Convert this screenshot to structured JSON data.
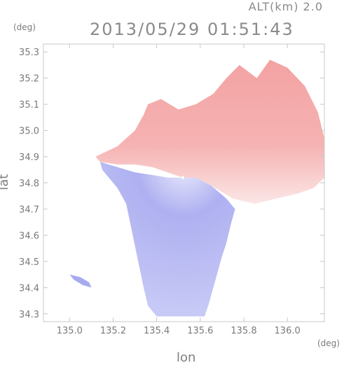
{
  "header": {
    "altitude_label": "ALT(km) 2.0",
    "timestamp": "2013/05/29 01:51:43"
  },
  "colors": {
    "frame": "#c8c8c8",
    "away_red": "#f4a0a0",
    "toward_blue": "#a8aaf0",
    "text": "#7a7a7a"
  },
  "chart_data": {
    "type": "heatmap",
    "title": "2013/05/29 01:51:43",
    "subtitle": "ALT(km) 2.0",
    "xlabel": "lon",
    "ylabel": "lat",
    "x_unit": "(deg)",
    "y_unit": "(deg)",
    "xlim": [
      134.88,
      136.17
    ],
    "ylim": [
      34.27,
      35.33
    ],
    "x_ticks": [
      "135.0",
      "135.2",
      "135.4",
      "135.6",
      "135.8",
      "136.0"
    ],
    "x_tick_values": [
      135.0,
      135.2,
      135.4,
      135.6,
      135.8,
      136.0
    ],
    "y_ticks": [
      "34.3",
      "34.4",
      "34.5",
      "34.6",
      "34.7",
      "34.8",
      "34.9",
      "35.0",
      "35.1",
      "35.2",
      "35.3"
    ],
    "y_tick_values": [
      34.3,
      34.4,
      34.5,
      34.6,
      34.7,
      34.8,
      34.9,
      35.0,
      35.1,
      35.2,
      35.3
    ],
    "radar_center": [
      135.52,
      34.82
    ],
    "regions": [
      {
        "name": "red",
        "color": "#f4a0a0",
        "polygon": [
          [
            135.12,
            34.9
          ],
          [
            135.22,
            34.94
          ],
          [
            135.3,
            35.0
          ],
          [
            135.34,
            35.06
          ],
          [
            135.36,
            35.1
          ],
          [
            135.42,
            35.12
          ],
          [
            135.5,
            35.08
          ],
          [
            135.58,
            35.1
          ],
          [
            135.66,
            35.14
          ],
          [
            135.72,
            35.2
          ],
          [
            135.78,
            35.25
          ],
          [
            135.86,
            35.2
          ],
          [
            135.92,
            35.27
          ],
          [
            136.0,
            35.24
          ],
          [
            136.08,
            35.17
          ],
          [
            136.14,
            35.07
          ],
          [
            136.17,
            34.97
          ],
          [
            136.17,
            34.82
          ],
          [
            136.12,
            34.78
          ],
          [
            136.05,
            34.76
          ],
          [
            135.95,
            34.74
          ],
          [
            135.85,
            34.72
          ],
          [
            135.75,
            34.74
          ],
          [
            135.65,
            34.79
          ],
          [
            135.58,
            34.82
          ],
          [
            135.52,
            34.82
          ],
          [
            135.45,
            34.84
          ],
          [
            135.38,
            34.86
          ],
          [
            135.3,
            34.87
          ],
          [
            135.22,
            34.87
          ],
          [
            135.14,
            34.88
          ]
        ]
      },
      {
        "name": "blue",
        "color": "#a8aaf0",
        "polygon": [
          [
            135.14,
            34.88
          ],
          [
            135.22,
            34.86
          ],
          [
            135.3,
            34.84
          ],
          [
            135.38,
            34.83
          ],
          [
            135.45,
            34.82
          ],
          [
            135.52,
            34.82
          ],
          [
            135.58,
            34.82
          ],
          [
            135.65,
            34.79
          ],
          [
            135.72,
            34.74
          ],
          [
            135.76,
            34.7
          ],
          [
            135.74,
            34.64
          ],
          [
            135.72,
            34.57
          ],
          [
            135.7,
            34.52
          ],
          [
            135.68,
            34.46
          ],
          [
            135.66,
            34.4
          ],
          [
            135.64,
            34.34
          ],
          [
            135.62,
            34.29
          ],
          [
            135.4,
            34.29
          ],
          [
            135.36,
            34.33
          ],
          [
            135.34,
            34.4
          ],
          [
            135.32,
            34.48
          ],
          [
            135.3,
            34.56
          ],
          [
            135.28,
            34.64
          ],
          [
            135.26,
            34.72
          ],
          [
            135.22,
            34.78
          ],
          [
            135.18,
            34.82
          ],
          [
            135.15,
            34.85
          ]
        ]
      },
      {
        "name": "blue-islet",
        "color": "#a8aaf0",
        "polygon": [
          [
            135.0,
            34.45
          ],
          [
            135.05,
            34.44
          ],
          [
            135.09,
            34.42
          ],
          [
            135.1,
            34.4
          ],
          [
            135.06,
            34.41
          ],
          [
            135.02,
            34.43
          ]
        ]
      }
    ],
    "grid": false
  }
}
